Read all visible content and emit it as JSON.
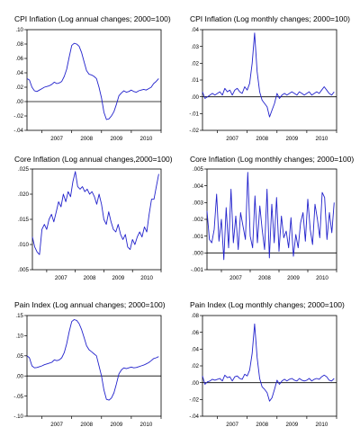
{
  "chart_data": [
    {
      "type": "line",
      "title": "CPI Inflation (Log annual changes; 2000=100)",
      "ylim": [
        -0.04,
        0.1
      ],
      "yticks": [
        ".10",
        ".08",
        ".06",
        ".04",
        ".02",
        ".00",
        "-.02",
        "-.04"
      ],
      "ytick_values": [
        0.1,
        0.08,
        0.06,
        0.04,
        0.02,
        0.0,
        -0.02,
        -0.04
      ],
      "xlim": [
        2006.5,
        2011.0
      ],
      "xticks": [
        "2007",
        "2008",
        "2009",
        "2010"
      ],
      "xtick_values": [
        2007,
        2008,
        2009,
        2010
      ],
      "zero_line": 0,
      "line_color": "#2222cc",
      "x": [
        2006.5,
        2006.583,
        2006.667,
        2006.75,
        2006.833,
        2006.917,
        2007.0,
        2007.083,
        2007.167,
        2007.25,
        2007.333,
        2007.417,
        2007.5,
        2007.583,
        2007.667,
        2007.75,
        2007.833,
        2007.917,
        2008.0,
        2008.083,
        2008.167,
        2008.25,
        2008.333,
        2008.417,
        2008.5,
        2008.583,
        2008.667,
        2008.75,
        2008.833,
        2008.917,
        2009.0,
        2009.083,
        2009.167,
        2009.25,
        2009.333,
        2009.417,
        2009.5,
        2009.583,
        2009.667,
        2009.75,
        2009.833,
        2009.917,
        2010.0,
        2010.083,
        2010.167,
        2010.25,
        2010.333,
        2010.417,
        2010.5,
        2010.583,
        2010.667,
        2010.75,
        2010.833,
        2010.917
      ],
      "y": [
        0.032,
        0.03,
        0.02,
        0.015,
        0.014,
        0.016,
        0.018,
        0.02,
        0.021,
        0.022,
        0.024,
        0.027,
        0.025,
        0.026,
        0.028,
        0.035,
        0.045,
        0.062,
        0.078,
        0.081,
        0.08,
        0.077,
        0.068,
        0.055,
        0.043,
        0.038,
        0.037,
        0.035,
        0.032,
        0.02,
        0.005,
        -0.015,
        -0.025,
        -0.024,
        -0.02,
        -0.014,
        -0.004,
        0.008,
        0.012,
        0.015,
        0.013,
        0.014,
        0.016,
        0.014,
        0.013,
        0.015,
        0.016,
        0.017,
        0.016,
        0.018,
        0.02,
        0.025,
        0.028,
        0.032
      ]
    },
    {
      "type": "line",
      "title": "CPI Inflation (Log monthly changes; 2000=100)",
      "ylim": [
        -0.02,
        0.04
      ],
      "yticks": [
        ".04",
        ".03",
        ".02",
        ".01",
        ".00",
        "-.01",
        "-.02"
      ],
      "ytick_values": [
        0.04,
        0.03,
        0.02,
        0.01,
        0.0,
        -0.01,
        -0.02
      ],
      "xlim": [
        2006.5,
        2011.0
      ],
      "xticks": [
        "2007",
        "2008",
        "2009",
        "2010"
      ],
      "xtick_values": [
        2007,
        2008,
        2009,
        2010
      ],
      "zero_line": 0,
      "line_color": "#2222cc",
      "x": [
        2006.5,
        2006.583,
        2006.667,
        2006.75,
        2006.833,
        2006.917,
        2007.0,
        2007.083,
        2007.167,
        2007.25,
        2007.333,
        2007.417,
        2007.5,
        2007.583,
        2007.667,
        2007.75,
        2007.833,
        2007.917,
        2008.0,
        2008.083,
        2008.167,
        2008.25,
        2008.333,
        2008.417,
        2008.5,
        2008.583,
        2008.667,
        2008.75,
        2008.833,
        2008.917,
        2009.0,
        2009.083,
        2009.167,
        2009.25,
        2009.333,
        2009.417,
        2009.5,
        2009.583,
        2009.667,
        2009.75,
        2009.833,
        2009.917,
        2010.0,
        2010.083,
        2010.167,
        2010.25,
        2010.333,
        2010.417,
        2010.5,
        2010.583,
        2010.667,
        2010.75,
        2010.833,
        2010.917
      ],
      "y": [
        0.003,
        -0.001,
        0.0,
        0.001,
        0.002,
        0.001,
        0.002,
        0.003,
        0.001,
        0.005,
        0.003,
        0.004,
        0.001,
        0.004,
        0.005,
        0.003,
        0.002,
        0.006,
        0.004,
        0.008,
        0.02,
        0.038,
        0.015,
        0.003,
        -0.002,
        -0.004,
        -0.006,
        -0.012,
        -0.008,
        -0.004,
        0.002,
        -0.001,
        0.001,
        0.002,
        0.001,
        0.002,
        0.003,
        0.002,
        0.001,
        0.003,
        0.002,
        0.001,
        0.002,
        0.003,
        0.001,
        0.002,
        0.003,
        0.002,
        0.004,
        0.006,
        0.004,
        0.002,
        0.001,
        0.003
      ]
    },
    {
      "type": "line",
      "title": "Core Inflation (Log annual changes,2000=100)",
      "ylim": [
        0.005,
        0.025
      ],
      "yticks": [
        ".025",
        ".020",
        ".015",
        ".010",
        ".005"
      ],
      "ytick_values": [
        0.025,
        0.02,
        0.015,
        0.01,
        0.005
      ],
      "xlim": [
        2006.5,
        2011.0
      ],
      "xticks": [
        "2007",
        "2008",
        "2009",
        "2010"
      ],
      "xtick_values": [
        2007,
        2008,
        2009,
        2010
      ],
      "line_color": "#2222cc",
      "x": [
        2006.5,
        2006.583,
        2006.667,
        2006.75,
        2006.833,
        2006.917,
        2007.0,
        2007.083,
        2007.167,
        2007.25,
        2007.333,
        2007.417,
        2007.5,
        2007.583,
        2007.667,
        2007.75,
        2007.833,
        2007.917,
        2008.0,
        2008.083,
        2008.167,
        2008.25,
        2008.333,
        2008.417,
        2008.5,
        2008.583,
        2008.667,
        2008.75,
        2008.833,
        2008.917,
        2009.0,
        2009.083,
        2009.167,
        2009.25,
        2009.333,
        2009.417,
        2009.5,
        2009.583,
        2009.667,
        2009.75,
        2009.833,
        2009.917,
        2010.0,
        2010.083,
        2010.167,
        2010.25,
        2010.333,
        2010.417,
        2010.5,
        2010.583,
        2010.667,
        2010.75,
        2010.833,
        2010.917
      ],
      "y": [
        0.0115,
        0.0095,
        0.0085,
        0.008,
        0.013,
        0.014,
        0.013,
        0.015,
        0.016,
        0.0145,
        0.0165,
        0.0185,
        0.0175,
        0.02,
        0.0185,
        0.0205,
        0.0195,
        0.0225,
        0.0245,
        0.0215,
        0.021,
        0.0215,
        0.0205,
        0.021,
        0.02,
        0.0205,
        0.0195,
        0.018,
        0.02,
        0.018,
        0.015,
        0.014,
        0.0165,
        0.0145,
        0.013,
        0.0125,
        0.014,
        0.012,
        0.011,
        0.012,
        0.0095,
        0.009,
        0.011,
        0.01,
        0.0115,
        0.0125,
        0.0115,
        0.0135,
        0.0125,
        0.016,
        0.019,
        0.019,
        0.0215,
        0.024
      ]
    },
    {
      "type": "line",
      "title": "Core Inflation (Log monthly changes; 2000=100)",
      "ylim": [
        -0.001,
        0.005
      ],
      "yticks": [
        ".005",
        ".004",
        ".003",
        ".002",
        ".001",
        ".000",
        "-.001"
      ],
      "ytick_values": [
        0.005,
        0.004,
        0.003,
        0.002,
        0.001,
        0.0,
        -0.001
      ],
      "xlim": [
        2006.5,
        2011.0
      ],
      "xticks": [
        "2007",
        "2008",
        "2009",
        "2010"
      ],
      "xtick_values": [
        2007,
        2008,
        2009,
        2010
      ],
      "zero_line": 0,
      "line_color": "#2222cc",
      "x": [
        2006.5,
        2006.583,
        2006.667,
        2006.75,
        2006.833,
        2006.917,
        2007.0,
        2007.083,
        2007.167,
        2007.25,
        2007.333,
        2007.417,
        2007.5,
        2007.583,
        2007.667,
        2007.75,
        2007.833,
        2007.917,
        2008.0,
        2008.083,
        2008.167,
        2008.25,
        2008.333,
        2008.417,
        2008.5,
        2008.583,
        2008.667,
        2008.75,
        2008.833,
        2008.917,
        2009.0,
        2009.083,
        2009.167,
        2009.25,
        2009.333,
        2009.417,
        2009.5,
        2009.583,
        2009.667,
        2009.75,
        2009.833,
        2009.917,
        2010.0,
        2010.083,
        2010.167,
        2010.25,
        2010.333,
        2010.417,
        2010.5,
        2010.583,
        2010.667,
        2010.75,
        2010.833,
        2010.917
      ],
      "y": [
        0.0025,
        0.0008,
        0.0006,
        0.0014,
        0.0035,
        0.0007,
        0.002,
        -0.0004,
        0.0027,
        0.0003,
        0.0038,
        0.0006,
        0.0022,
        0.0002,
        0.0024,
        0.0016,
        0.0008,
        0.0048,
        0.001,
        0.0003,
        0.0034,
        0.0006,
        0.0028,
        0.0014,
        0.0002,
        0.0038,
        -0.0003,
        0.0029,
        0.0006,
        0.0033,
        0.0001,
        0.0022,
        0.0009,
        0.0013,
        0.0003,
        0.0021,
        -0.0002,
        0.0011,
        0.0003,
        0.0018,
        0.0024,
        0.0007,
        0.0032,
        0.0014,
        0.0005,
        0.0029,
        0.002,
        0.0009,
        0.0036,
        0.0033,
        0.0008,
        0.0024,
        0.0012,
        0.003
      ]
    },
    {
      "type": "line",
      "title": "Pain Index (Log annual changes; 2000=100)",
      "ylim": [
        -0.1,
        0.15
      ],
      "yticks": [
        ".15",
        ".10",
        ".05",
        ".00",
        "-.05",
        "-.10"
      ],
      "ytick_values": [
        0.15,
        0.1,
        0.05,
        0.0,
        -0.05,
        -0.1
      ],
      "xlim": [
        2006.5,
        2011.0
      ],
      "xticks": [
        "2007",
        "2008",
        "2009",
        "2010"
      ],
      "xtick_values": [
        2007,
        2008,
        2009,
        2010
      ],
      "zero_line": 0,
      "line_color": "#2222cc",
      "x": [
        2006.5,
        2006.583,
        2006.667,
        2006.75,
        2006.833,
        2006.917,
        2007.0,
        2007.083,
        2007.167,
        2007.25,
        2007.333,
        2007.417,
        2007.5,
        2007.583,
        2007.667,
        2007.75,
        2007.833,
        2007.917,
        2008.0,
        2008.083,
        2008.167,
        2008.25,
        2008.333,
        2008.417,
        2008.5,
        2008.583,
        2008.667,
        2008.75,
        2008.833,
        2008.917,
        2009.0,
        2009.083,
        2009.167,
        2009.25,
        2009.333,
        2009.417,
        2009.5,
        2009.583,
        2009.667,
        2009.75,
        2009.833,
        2009.917,
        2010.0,
        2010.083,
        2010.167,
        2010.25,
        2010.333,
        2010.417,
        2010.5,
        2010.583,
        2010.667,
        2010.75,
        2010.833,
        2010.917
      ],
      "y": [
        0.05,
        0.045,
        0.025,
        0.02,
        0.021,
        0.023,
        0.025,
        0.028,
        0.03,
        0.032,
        0.034,
        0.04,
        0.038,
        0.04,
        0.045,
        0.058,
        0.08,
        0.11,
        0.135,
        0.14,
        0.138,
        0.13,
        0.115,
        0.095,
        0.075,
        0.065,
        0.06,
        0.055,
        0.05,
        0.025,
        0.0,
        -0.035,
        -0.058,
        -0.06,
        -0.055,
        -0.042,
        -0.02,
        0.005,
        0.015,
        0.02,
        0.018,
        0.02,
        0.022,
        0.02,
        0.021,
        0.023,
        0.025,
        0.027,
        0.03,
        0.033,
        0.038,
        0.043,
        0.045,
        0.048
      ]
    },
    {
      "type": "line",
      "title": "Pain Index (Log monthly changes; 2000=100)",
      "ylim": [
        -0.04,
        0.08
      ],
      "yticks": [
        ".08",
        ".06",
        ".04",
        ".02",
        ".00",
        "-.02",
        "-.04"
      ],
      "ytick_values": [
        0.08,
        0.06,
        0.04,
        0.02,
        0.0,
        -0.02,
        -0.04
      ],
      "xlim": [
        2006.5,
        2011.0
      ],
      "xticks": [
        "2007",
        "2008",
        "2009",
        "2010"
      ],
      "xtick_values": [
        2007,
        2008,
        2009,
        2010
      ],
      "zero_line": 0,
      "line_color": "#2222cc",
      "x": [
        2006.5,
        2006.583,
        2006.667,
        2006.75,
        2006.833,
        2006.917,
        2007.0,
        2007.083,
        2007.167,
        2007.25,
        2007.333,
        2007.417,
        2007.5,
        2007.583,
        2007.667,
        2007.75,
        2007.833,
        2007.917,
        2008.0,
        2008.083,
        2008.167,
        2008.25,
        2008.333,
        2008.417,
        2008.5,
        2008.583,
        2008.667,
        2008.75,
        2008.833,
        2008.917,
        2009.0,
        2009.083,
        2009.167,
        2009.25,
        2009.333,
        2009.417,
        2009.5,
        2009.583,
        2009.667,
        2009.75,
        2009.833,
        2009.917,
        2010.0,
        2010.083,
        2010.167,
        2010.25,
        2010.333,
        2010.417,
        2010.5,
        2010.583,
        2010.667,
        2010.75,
        2010.833,
        2010.917
      ],
      "y": [
        0.008,
        -0.002,
        0.001,
        0.002,
        0.004,
        0.003,
        0.004,
        0.005,
        0.002,
        0.009,
        0.006,
        0.007,
        0.002,
        0.007,
        0.008,
        0.005,
        0.004,
        0.01,
        0.008,
        0.015,
        0.035,
        0.07,
        0.03,
        0.005,
        -0.005,
        -0.008,
        -0.012,
        -0.022,
        -0.018,
        -0.008,
        0.003,
        -0.002,
        0.002,
        0.004,
        0.002,
        0.004,
        0.005,
        0.003,
        0.002,
        0.005,
        0.003,
        0.002,
        0.003,
        0.005,
        0.002,
        0.004,
        0.005,
        0.004,
        0.007,
        0.009,
        0.007,
        0.003,
        0.002,
        0.005
      ]
    }
  ]
}
